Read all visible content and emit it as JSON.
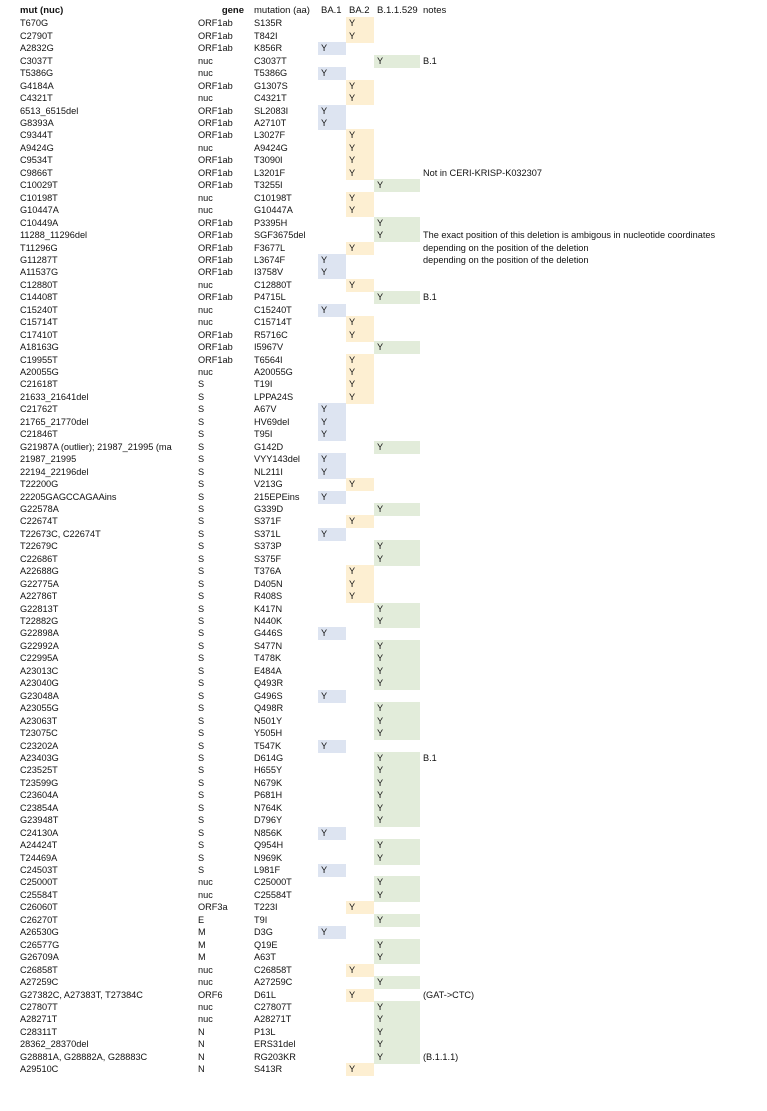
{
  "headers": {
    "mut": "mut (nuc)",
    "gene": "gene",
    "aa": "mutation (aa)",
    "ba1": "BA.1",
    "ba2": "BA.2",
    "b529": "B.1.1.529",
    "notes": "notes"
  },
  "colors": {
    "ba1": "#dde4f1",
    "ba2": "#fdefd2",
    "b529": "#e2ecda"
  },
  "rows": [
    [
      "T670G",
      "ORF1ab",
      "S135R",
      "",
      "Y",
      "",
      ""
    ],
    [
      "C2790T",
      "ORF1ab",
      "T842I",
      "",
      "Y",
      "",
      ""
    ],
    [
      "A2832G",
      "ORF1ab",
      "K856R",
      "Y",
      "",
      "",
      ""
    ],
    [
      "C3037T",
      "nuc",
      "C3037T",
      "",
      "",
      "Y",
      "B.1"
    ],
    [
      "T5386G",
      "nuc",
      "T5386G",
      "Y",
      "",
      "",
      ""
    ],
    [
      "G4184A",
      "ORF1ab",
      "G1307S",
      "",
      "Y",
      "",
      ""
    ],
    [
      "C4321T",
      "nuc",
      "C4321T",
      "",
      "Y",
      "",
      ""
    ],
    [
      "6513_6515del",
      "ORF1ab",
      "SL2083I",
      "Y",
      "",
      "",
      ""
    ],
    [
      "G8393A",
      "ORF1ab",
      "A2710T",
      "Y",
      "",
      "",
      ""
    ],
    [
      "C9344T",
      "ORF1ab",
      "L3027F",
      "",
      "Y",
      "",
      ""
    ],
    [
      "A9424G",
      "nuc",
      "A9424G",
      "",
      "Y",
      "",
      ""
    ],
    [
      "C9534T",
      "ORF1ab",
      "T3090I",
      "",
      "Y",
      "",
      ""
    ],
    [
      "C9866T",
      "ORF1ab",
      "L3201F",
      "",
      "Y",
      "",
      "Not in CERI-KRISP-K032307"
    ],
    [
      "C10029T",
      "ORF1ab",
      "T3255I",
      "",
      "",
      "Y",
      ""
    ],
    [
      "C10198T",
      "nuc",
      "C10198T",
      "",
      "Y",
      "",
      ""
    ],
    [
      "G10447A",
      "nuc",
      "G10447A",
      "",
      "Y",
      "",
      ""
    ],
    [
      "C10449A",
      "ORF1ab",
      "P3395H",
      "",
      "",
      "Y",
      ""
    ],
    [
      "11288_11296del",
      "ORF1ab",
      "SGF3675del",
      "",
      "",
      "Y",
      "The exact position of this deletion is ambigous in nucleotide coordinates"
    ],
    [
      "T11296G",
      "ORF1ab",
      "F3677L",
      "",
      "Y",
      "",
      "depending on the position of the deletion"
    ],
    [
      "G11287T",
      "ORF1ab",
      "L3674F",
      "Y",
      "",
      "",
      "depending on the position of the deletion"
    ],
    [
      "A11537G",
      "ORF1ab",
      "I3758V",
      "Y",
      "",
      "",
      ""
    ],
    [
      "C12880T",
      "nuc",
      "C12880T",
      "",
      "Y",
      "",
      ""
    ],
    [
      "C14408T",
      "ORF1ab",
      "P4715L",
      "",
      "",
      "Y",
      "B.1"
    ],
    [
      "C15240T",
      "nuc",
      "C15240T",
      "Y",
      "",
      "",
      ""
    ],
    [
      "C15714T",
      "nuc",
      "C15714T",
      "",
      "Y",
      "",
      ""
    ],
    [
      "C17410T",
      "ORF1ab",
      "R5716C",
      "",
      "Y",
      "",
      ""
    ],
    [
      "A18163G",
      "ORF1ab",
      "I5967V",
      "",
      "",
      "Y",
      ""
    ],
    [
      "C19955T",
      "ORF1ab",
      "T6564I",
      "",
      "Y",
      "",
      ""
    ],
    [
      "A20055G",
      "nuc",
      "A20055G",
      "",
      "Y",
      "",
      ""
    ],
    [
      "C21618T",
      "S",
      "T19I",
      "",
      "Y",
      "",
      ""
    ],
    [
      "21633_21641del",
      "S",
      "LPPA24S",
      "",
      "Y",
      "",
      ""
    ],
    [
      "C21762T",
      "S",
      "A67V",
      "Y",
      "",
      "",
      ""
    ],
    [
      "21765_21770del",
      "S",
      "HV69del",
      "Y",
      "",
      "",
      ""
    ],
    [
      "C21846T",
      "S",
      "T95I",
      "Y",
      "",
      "",
      ""
    ],
    [
      "G21987A (outlier); 21987_21995 (ma",
      "S",
      "G142D",
      "",
      "",
      "Y",
      ""
    ],
    [
      "21987_21995",
      "S",
      "VYY143del",
      "Y",
      "",
      "",
      ""
    ],
    [
      "22194_22196del",
      "S",
      "NL211I",
      "Y",
      "",
      "",
      ""
    ],
    [
      "T22200G",
      "S",
      "V213G",
      "",
      "Y",
      "",
      ""
    ],
    [
      "22205GAGCCAGAAins",
      "S",
      "215EPEins",
      "Y",
      "",
      "",
      ""
    ],
    [
      "G22578A",
      "S",
      "G339D",
      "",
      "",
      "Y",
      ""
    ],
    [
      "C22674T",
      "S",
      "S371F",
      "",
      "Y",
      "",
      ""
    ],
    [
      "T22673C, C22674T",
      "S",
      "S371L",
      "Y",
      "",
      "",
      ""
    ],
    [
      "T22679C",
      "S",
      "S373P",
      "",
      "",
      "Y",
      ""
    ],
    [
      "C22686T",
      "S",
      "S375F",
      "",
      "",
      "Y",
      ""
    ],
    [
      "A22688G",
      "S",
      "T376A",
      "",
      "Y",
      "",
      ""
    ],
    [
      "G22775A",
      "S",
      "D405N",
      "",
      "Y",
      "",
      ""
    ],
    [
      "A22786T",
      "S",
      "R408S",
      "",
      "Y",
      "",
      ""
    ],
    [
      "G22813T",
      "S",
      "K417N",
      "",
      "",
      "Y",
      ""
    ],
    [
      "T22882G",
      "S",
      "N440K",
      "",
      "",
      "Y",
      ""
    ],
    [
      "G22898A",
      "S",
      "G446S",
      "Y",
      "",
      "",
      ""
    ],
    [
      "G22992A",
      "S",
      "S477N",
      "",
      "",
      "Y",
      ""
    ],
    [
      "C22995A",
      "S",
      "T478K",
      "",
      "",
      "Y",
      ""
    ],
    [
      "A23013C",
      "S",
      "E484A",
      "",
      "",
      "Y",
      ""
    ],
    [
      "A23040G",
      "S",
      "Q493R",
      "",
      "",
      "Y",
      ""
    ],
    [
      "G23048A",
      "S",
      "G496S",
      "Y",
      "",
      "",
      ""
    ],
    [
      "A23055G",
      "S",
      "Q498R",
      "",
      "",
      "Y",
      ""
    ],
    [
      "A23063T",
      "S",
      "N501Y",
      "",
      "",
      "Y",
      ""
    ],
    [
      "T23075C",
      "S",
      "Y505H",
      "",
      "",
      "Y",
      ""
    ],
    [
      "C23202A",
      "S",
      "T547K",
      "Y",
      "",
      "",
      ""
    ],
    [
      "A23403G",
      "S",
      "D614G",
      "",
      "",
      "Y",
      "B.1"
    ],
    [
      "C23525T",
      "S",
      "H655Y",
      "",
      "",
      "Y",
      ""
    ],
    [
      "T23599G",
      "S",
      "N679K",
      "",
      "",
      "Y",
      ""
    ],
    [
      "C23604A",
      "S",
      "P681H",
      "",
      "",
      "Y",
      ""
    ],
    [
      "C23854A",
      "S",
      "N764K",
      "",
      "",
      "Y",
      ""
    ],
    [
      "G23948T",
      "S",
      "D796Y",
      "",
      "",
      "Y",
      ""
    ],
    [
      "C24130A",
      "S",
      "N856K",
      "Y",
      "",
      "",
      ""
    ],
    [
      "A24424T",
      "S",
      "Q954H",
      "",
      "",
      "Y",
      ""
    ],
    [
      "T24469A",
      "S",
      "N969K",
      "",
      "",
      "Y",
      ""
    ],
    [
      "C24503T",
      "S",
      "L981F",
      "Y",
      "",
      "",
      ""
    ],
    [
      "C25000T",
      "nuc",
      "C25000T",
      "",
      "",
      "Y",
      ""
    ],
    [
      "C25584T",
      "nuc",
      "C25584T",
      "",
      "",
      "Y",
      ""
    ],
    [
      "C26060T",
      "ORF3a",
      "T223I",
      "",
      "Y",
      "",
      ""
    ],
    [
      "C26270T",
      "E",
      "T9I",
      "",
      "",
      "Y",
      ""
    ],
    [
      "A26530G",
      "M",
      "D3G",
      "Y",
      "",
      "",
      ""
    ],
    [
      "C26577G",
      "M",
      "Q19E",
      "",
      "",
      "Y",
      ""
    ],
    [
      "G26709A",
      "M",
      "A63T",
      "",
      "",
      "Y",
      ""
    ],
    [
      "C26858T",
      "nuc",
      "C26858T",
      "",
      "Y",
      "",
      ""
    ],
    [
      "A27259C",
      "nuc",
      "A27259C",
      "",
      "",
      "Y",
      ""
    ],
    [
      "G27382C, A27383T, T27384C",
      "ORF6",
      "D61L",
      "",
      "Y",
      "",
      "(GAT->CTC)"
    ],
    [
      "C27807T",
      "nuc",
      "C27807T",
      "",
      "",
      "Y",
      ""
    ],
    [
      "A28271T",
      "nuc",
      "A28271T",
      "",
      "",
      "Y",
      ""
    ],
    [
      "C28311T",
      "N",
      "P13L",
      "",
      "",
      "Y",
      ""
    ],
    [
      "28362_28370del",
      "N",
      "ERS31del",
      "",
      "",
      "Y",
      ""
    ],
    [
      "G28881A, G28882A, G28883C",
      "N",
      "RG203KR",
      "",
      "",
      "Y",
      "(B.1.1.1)"
    ],
    [
      "A29510C",
      "N",
      "S413R",
      "",
      "Y",
      "",
      ""
    ]
  ]
}
